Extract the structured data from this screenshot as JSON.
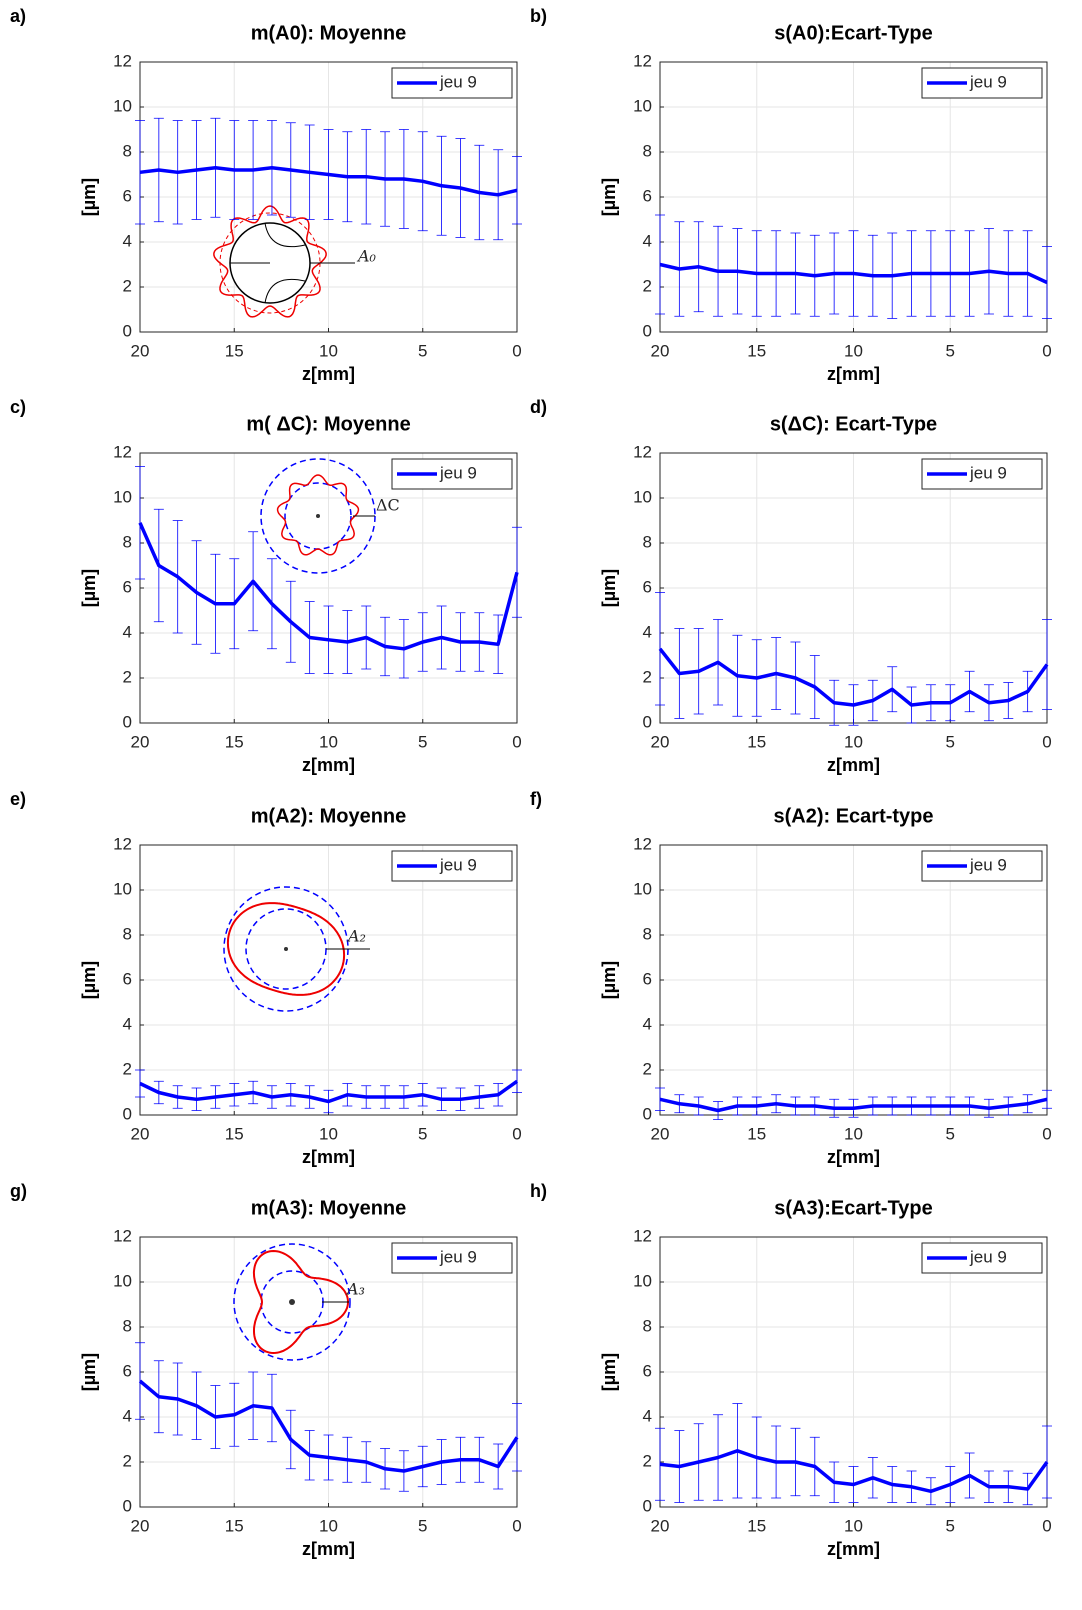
{
  "chart_data": [
    {
      "type": "line",
      "panel": "a)",
      "title": "m(A0): Moyenne",
      "x_label": "z[mm]",
      "y_label": "[µm]",
      "annotation": "A₀",
      "x": [
        20,
        19,
        18,
        17,
        16,
        15,
        14,
        13,
        12,
        11,
        10,
        9,
        8,
        7,
        6,
        5,
        4,
        3,
        2,
        1,
        0
      ],
      "xlim": [
        20,
        0
      ],
      "ylim": [
        0,
        12
      ],
      "xticks": [
        20,
        15,
        10,
        5,
        0
      ],
      "yticks": [
        0,
        2,
        4,
        6,
        8,
        10,
        12
      ],
      "grid": true,
      "legend": "upper right",
      "series": [
        {
          "name": "jeu 9",
          "color": "#0000ff",
          "values": [
            7.1,
            7.2,
            7.1,
            7.2,
            7.3,
            7.2,
            7.2,
            7.3,
            7.2,
            7.1,
            7.0,
            6.9,
            6.9,
            6.8,
            6.8,
            6.7,
            6.5,
            6.4,
            6.2,
            6.1,
            6.3
          ],
          "errors": [
            2.3,
            2.3,
            2.3,
            2.2,
            2.2,
            2.2,
            2.2,
            2.1,
            2.1,
            2.1,
            2.0,
            2.0,
            2.1,
            2.1,
            2.2,
            2.2,
            2.2,
            2.2,
            2.1,
            2.0,
            1.5
          ]
        }
      ]
    },
    {
      "type": "line",
      "panel": "b)",
      "title": "s(A0):Ecart-Type",
      "x_label": "z[mm]",
      "y_label": "[µm]",
      "x": [
        20,
        19,
        18,
        17,
        16,
        15,
        14,
        13,
        12,
        11,
        10,
        9,
        8,
        7,
        6,
        5,
        4,
        3,
        2,
        1,
        0
      ],
      "xlim": [
        20,
        0
      ],
      "ylim": [
        0,
        12
      ],
      "xticks": [
        20,
        15,
        10,
        5,
        0
      ],
      "yticks": [
        0,
        2,
        4,
        6,
        8,
        10,
        12
      ],
      "grid": true,
      "legend": "upper right",
      "series": [
        {
          "name": "jeu 9",
          "color": "#0000ff",
          "values": [
            3.0,
            2.8,
            2.9,
            2.7,
            2.7,
            2.6,
            2.6,
            2.6,
            2.5,
            2.6,
            2.6,
            2.5,
            2.5,
            2.6,
            2.6,
            2.6,
            2.6,
            2.7,
            2.6,
            2.6,
            2.2
          ],
          "errors": [
            2.2,
            2.1,
            2.0,
            2.0,
            1.9,
            1.9,
            1.9,
            1.8,
            1.8,
            1.8,
            1.9,
            1.8,
            1.9,
            1.9,
            1.9,
            1.9,
            1.9,
            1.9,
            1.9,
            1.9,
            1.6
          ]
        }
      ]
    },
    {
      "type": "line",
      "panel": "c)",
      "title": "m( ΔC): Moyenne",
      "x_label": "z[mm]",
      "y_label": "[µm]",
      "annotation": "ΔC",
      "x": [
        20,
        19,
        18,
        17,
        16,
        15,
        14,
        13,
        12,
        11,
        10,
        9,
        8,
        7,
        6,
        5,
        4,
        3,
        2,
        1,
        0
      ],
      "xlim": [
        20,
        0
      ],
      "ylim": [
        0,
        12
      ],
      "xticks": [
        20,
        15,
        10,
        5,
        0
      ],
      "yticks": [
        0,
        2,
        4,
        6,
        8,
        10,
        12
      ],
      "grid": true,
      "legend": "upper right",
      "series": [
        {
          "name": "jeu 9",
          "color": "#0000ff",
          "values": [
            8.9,
            7.0,
            6.5,
            5.8,
            5.3,
            5.3,
            6.3,
            5.3,
            4.5,
            3.8,
            3.7,
            3.6,
            3.8,
            3.4,
            3.3,
            3.6,
            3.8,
            3.6,
            3.6,
            3.5,
            6.7
          ],
          "errors": [
            2.5,
            2.5,
            2.5,
            2.3,
            2.2,
            2.0,
            2.2,
            2.0,
            1.8,
            1.6,
            1.5,
            1.4,
            1.4,
            1.3,
            1.3,
            1.3,
            1.4,
            1.3,
            1.3,
            1.3,
            2.0
          ]
        }
      ]
    },
    {
      "type": "line",
      "panel": "d)",
      "title": "s(ΔC): Ecart-Type",
      "x_label": "z[mm]",
      "y_label": "[µm]",
      "x": [
        20,
        19,
        18,
        17,
        16,
        15,
        14,
        13,
        12,
        11,
        10,
        9,
        8,
        7,
        6,
        5,
        4,
        3,
        2,
        1,
        0
      ],
      "xlim": [
        20,
        0
      ],
      "ylim": [
        0,
        12
      ],
      "xticks": [
        20,
        15,
        10,
        5,
        0
      ],
      "yticks": [
        0,
        2,
        4,
        6,
        8,
        10,
        12
      ],
      "grid": true,
      "legend": "upper right",
      "series": [
        {
          "name": "jeu 9",
          "color": "#0000ff",
          "values": [
            3.3,
            2.2,
            2.3,
            2.7,
            2.1,
            2.0,
            2.2,
            2.0,
            1.6,
            0.9,
            0.8,
            1.0,
            1.5,
            0.8,
            0.9,
            0.9,
            1.4,
            0.9,
            1.0,
            1.4,
            2.6
          ],
          "errors": [
            2.5,
            2.0,
            1.9,
            1.9,
            1.8,
            1.7,
            1.6,
            1.6,
            1.4,
            1.0,
            0.9,
            0.9,
            1.0,
            0.8,
            0.8,
            0.8,
            0.9,
            0.8,
            0.8,
            0.9,
            2.0
          ]
        }
      ]
    },
    {
      "type": "line",
      "panel": "e)",
      "title": "m(A2): Moyenne",
      "x_label": "z[mm]",
      "y_label": "[µm]",
      "annotation": "A₂",
      "x": [
        20,
        19,
        18,
        17,
        16,
        15,
        14,
        13,
        12,
        11,
        10,
        9,
        8,
        7,
        6,
        5,
        4,
        3,
        2,
        1,
        0
      ],
      "xlim": [
        20,
        0
      ],
      "ylim": [
        0,
        12
      ],
      "xticks": [
        20,
        15,
        10,
        5,
        0
      ],
      "yticks": [
        0,
        2,
        4,
        6,
        8,
        10,
        12
      ],
      "grid": true,
      "legend": "upper right",
      "series": [
        {
          "name": "jeu 9",
          "color": "#0000ff",
          "values": [
            1.4,
            1.0,
            0.8,
            0.7,
            0.8,
            0.9,
            1.0,
            0.8,
            0.9,
            0.8,
            0.6,
            0.9,
            0.8,
            0.8,
            0.8,
            0.9,
            0.7,
            0.7,
            0.8,
            0.9,
            1.5
          ],
          "errors": [
            0.6,
            0.5,
            0.5,
            0.5,
            0.5,
            0.5,
            0.5,
            0.5,
            0.5,
            0.5,
            0.5,
            0.5,
            0.5,
            0.5,
            0.5,
            0.5,
            0.5,
            0.5,
            0.5,
            0.5,
            0.5
          ]
        }
      ]
    },
    {
      "type": "line",
      "panel": "f)",
      "title": "s(A2): Ecart-type",
      "x_label": "z[mm]",
      "y_label": "[µm]",
      "x": [
        20,
        19,
        18,
        17,
        16,
        15,
        14,
        13,
        12,
        11,
        10,
        9,
        8,
        7,
        6,
        5,
        4,
        3,
        2,
        1,
        0
      ],
      "xlim": [
        20,
        0
      ],
      "ylim": [
        0,
        12
      ],
      "xticks": [
        20,
        15,
        10,
        5,
        0
      ],
      "yticks": [
        0,
        2,
        4,
        6,
        8,
        10,
        12
      ],
      "grid": true,
      "legend": "upper right",
      "series": [
        {
          "name": "jeu 9",
          "color": "#0000ff",
          "values": [
            0.7,
            0.5,
            0.4,
            0.2,
            0.4,
            0.4,
            0.5,
            0.4,
            0.4,
            0.3,
            0.3,
            0.4,
            0.4,
            0.4,
            0.4,
            0.4,
            0.4,
            0.3,
            0.4,
            0.5,
            0.7
          ],
          "errors": [
            0.5,
            0.4,
            0.4,
            0.4,
            0.4,
            0.4,
            0.4,
            0.4,
            0.4,
            0.4,
            0.4,
            0.4,
            0.4,
            0.4,
            0.4,
            0.4,
            0.4,
            0.4,
            0.4,
            0.4,
            0.4
          ]
        }
      ]
    },
    {
      "type": "line",
      "panel": "g)",
      "title": "m(A3): Moyenne",
      "x_label": "z[mm]",
      "y_label": "[µm]",
      "annotation": "A₃",
      "x": [
        20,
        19,
        18,
        17,
        16,
        15,
        14,
        13,
        12,
        11,
        10,
        9,
        8,
        7,
        6,
        5,
        4,
        3,
        2,
        1,
        0
      ],
      "xlim": [
        20,
        0
      ],
      "ylim": [
        0,
        12
      ],
      "xticks": [
        20,
        15,
        10,
        5,
        0
      ],
      "yticks": [
        0,
        2,
        4,
        6,
        8,
        10,
        12
      ],
      "grid": true,
      "legend": "upper right",
      "series": [
        {
          "name": "jeu 9",
          "color": "#0000ff",
          "values": [
            5.6,
            4.9,
            4.8,
            4.5,
            4.0,
            4.1,
            4.5,
            4.4,
            3.0,
            2.3,
            2.2,
            2.1,
            2.0,
            1.7,
            1.6,
            1.8,
            2.0,
            2.1,
            2.1,
            1.8,
            3.1
          ],
          "errors": [
            1.7,
            1.6,
            1.6,
            1.5,
            1.4,
            1.4,
            1.5,
            1.5,
            1.3,
            1.1,
            1.0,
            1.0,
            0.9,
            0.9,
            0.9,
            0.9,
            1.0,
            1.0,
            1.0,
            1.0,
            1.5
          ]
        }
      ]
    },
    {
      "type": "line",
      "panel": "h)",
      "title": "s(A3):Ecart-Type",
      "x_label": "z[mm]",
      "y_label": "[µm]",
      "x": [
        20,
        19,
        18,
        17,
        16,
        15,
        14,
        13,
        12,
        11,
        10,
        9,
        8,
        7,
        6,
        5,
        4,
        3,
        2,
        1,
        0
      ],
      "xlim": [
        20,
        0
      ],
      "ylim": [
        0,
        12
      ],
      "xticks": [
        20,
        15,
        10,
        5,
        0
      ],
      "yticks": [
        0,
        2,
        4,
        6,
        8,
        10,
        12
      ],
      "grid": true,
      "legend": "upper right",
      "series": [
        {
          "name": "jeu 9",
          "color": "#0000ff",
          "values": [
            1.9,
            1.8,
            2.0,
            2.2,
            2.5,
            2.2,
            2.0,
            2.0,
            1.8,
            1.1,
            1.0,
            1.3,
            1.0,
            0.9,
            0.7,
            1.0,
            1.4,
            0.9,
            0.9,
            0.8,
            2.0
          ],
          "errors": [
            1.6,
            1.6,
            1.7,
            1.9,
            2.1,
            1.8,
            1.6,
            1.5,
            1.3,
            0.9,
            0.8,
            0.9,
            0.8,
            0.7,
            0.6,
            0.8,
            1.0,
            0.7,
            0.7,
            0.7,
            1.6
          ]
        }
      ]
    }
  ]
}
